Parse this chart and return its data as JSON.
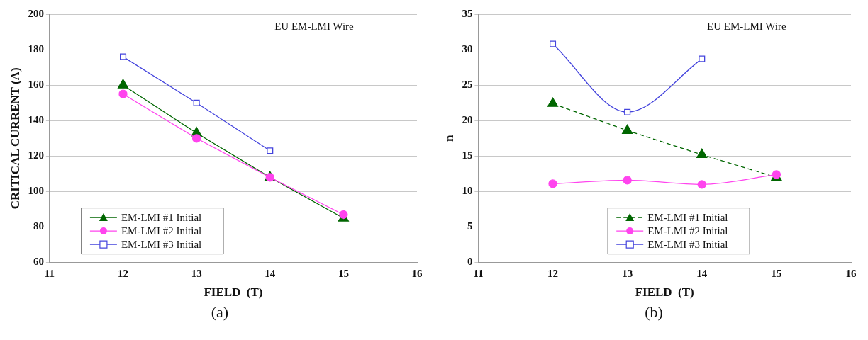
{
  "chart_data": [
    {
      "type": "line",
      "xlabel": "FIELD  (T)",
      "ylabel": "CRITICAL CURRENT (A)",
      "annotations": [
        "EU EM-LMI Wire",
        "(a)"
      ],
      "x": [
        12,
        13,
        14,
        15
      ],
      "xlim": [
        11,
        16
      ],
      "xticks": [
        11,
        12,
        13,
        14,
        15,
        16
      ],
      "ylim": [
        60,
        200
      ],
      "yticks": [
        60,
        80,
        100,
        120,
        140,
        160,
        180,
        200
      ],
      "grid": "y",
      "legend": "bottom left",
      "series": [
        {
          "name": "EM-LMI #1 Initial",
          "color": "#006600",
          "marker": "triangle",
          "line_style": "solid",
          "values": [
            160,
            133,
            108,
            85
          ]
        },
        {
          "name": "EM-LMI #2 Initial",
          "color": "#ff44ee",
          "marker": "circle",
          "line_style": "solid",
          "values": [
            155,
            130,
            108,
            87
          ]
        },
        {
          "name": "EM-LMI #3 Initial",
          "color": "#4444dd",
          "marker": "square",
          "line_style": "solid",
          "values": [
            176,
            150,
            123,
            null
          ]
        }
      ]
    },
    {
      "type": "line",
      "xlabel": "FIELD  (T)",
      "ylabel": "n",
      "annotations": [
        "EU EM-LMI Wire",
        "(b)"
      ],
      "x": [
        12,
        13,
        14,
        15
      ],
      "xlim": [
        11,
        16
      ],
      "xticks": [
        11,
        12,
        13,
        14,
        15,
        16
      ],
      "ylim": [
        0,
        35
      ],
      "yticks": [
        0,
        5,
        10,
        15,
        20,
        25,
        30,
        35
      ],
      "grid": "y",
      "legend": "bottom",
      "series": [
        {
          "name": "EM-LMI #1 Initial",
          "color": "#006600",
          "marker": "triangle",
          "line_style": "dashed",
          "values": [
            22.4,
            18.6,
            15.2,
            12.0
          ]
        },
        {
          "name": "EM-LMI #2 Initial",
          "color": "#ff44ee",
          "marker": "circle",
          "line_style": "solid",
          "values": [
            11.1,
            11.6,
            11.0,
            12.4
          ]
        },
        {
          "name": "EM-LMI #3 Initial",
          "color": "#4444dd",
          "marker": "square",
          "line_style": "solid",
          "values": [
            30.8,
            21.2,
            28.7,
            null
          ]
        }
      ]
    }
  ]
}
